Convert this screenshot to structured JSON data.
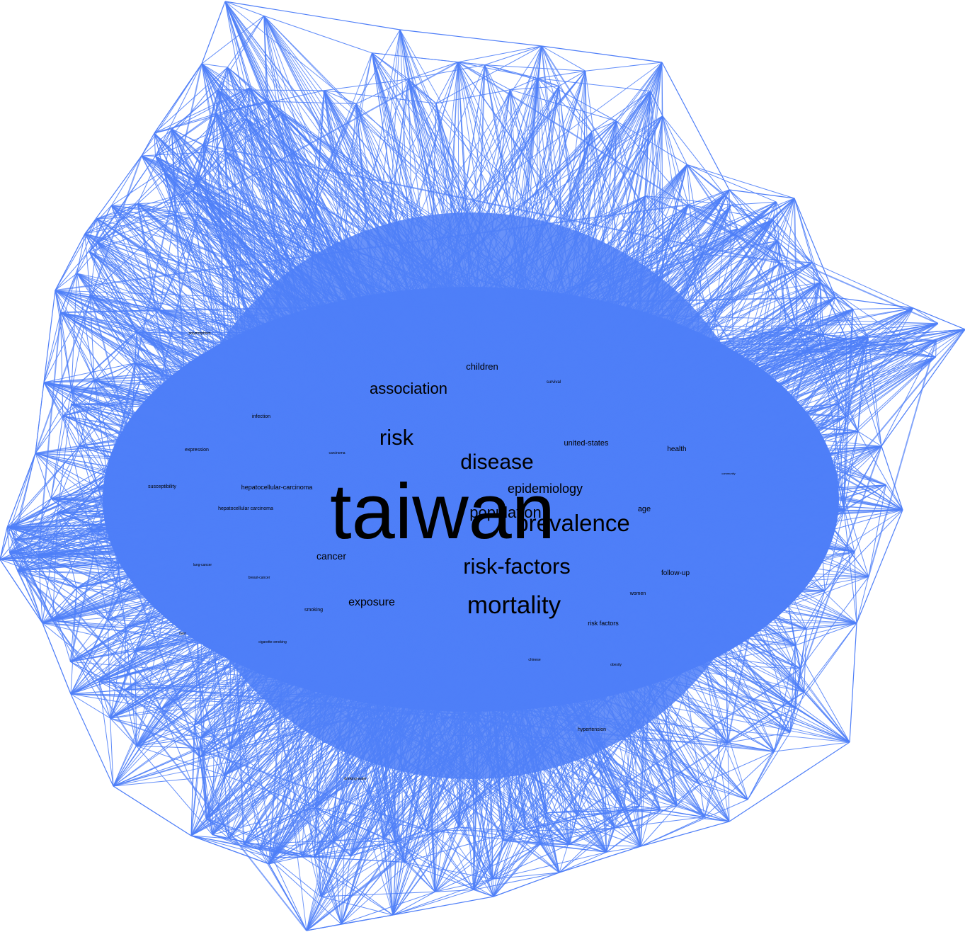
{
  "colors": {
    "edge": "#4f7ff8",
    "fill": "#4f7ff8",
    "label": "#000000",
    "background": "#ffffff"
  },
  "keywords": [
    {
      "id": "taiwan",
      "text": "taiwan"
    },
    {
      "id": "prevalence",
      "text": "prevalence"
    },
    {
      "id": "population",
      "text": "population"
    },
    {
      "id": "mortality",
      "text": "mortality"
    },
    {
      "id": "risk-factors",
      "text": "risk-factors"
    },
    {
      "id": "risk",
      "text": "risk"
    },
    {
      "id": "disease",
      "text": "disease"
    },
    {
      "id": "association",
      "text": "association"
    },
    {
      "id": "epidemiology",
      "text": "epidemiology"
    },
    {
      "id": "exposure",
      "text": "exposure"
    },
    {
      "id": "cancer",
      "text": "cancer"
    },
    {
      "id": "children",
      "text": "children"
    },
    {
      "id": "united-states",
      "text": "united-states"
    },
    {
      "id": "health",
      "text": "health"
    },
    {
      "id": "age",
      "text": "age"
    },
    {
      "id": "follow-up",
      "text": "follow-up"
    },
    {
      "id": "risk-factors-2",
      "text": "risk factors"
    },
    {
      "id": "women",
      "text": "women"
    },
    {
      "id": "hepatocellular-carcinoma",
      "text": "hepatocellular-carcinoma"
    },
    {
      "id": "hepatocellular-carcinoma-2",
      "text": "hepatocellular carcinoma"
    },
    {
      "id": "susceptibility",
      "text": "susceptibility"
    },
    {
      "id": "expression",
      "text": "expression"
    },
    {
      "id": "infection",
      "text": "infection"
    },
    {
      "id": "smoking",
      "text": "smoking"
    },
    {
      "id": "survival",
      "text": "survival"
    },
    {
      "id": "hypertension",
      "text": "hypertension"
    },
    {
      "id": "carcinoma",
      "text": "carcinoma"
    },
    {
      "id": "breast-cancer",
      "text": "breast-cancer"
    },
    {
      "id": "lung-cancer",
      "text": "lung-cancer"
    },
    {
      "id": "cigarette-smoking",
      "text": "cigarette-smoking"
    },
    {
      "id": "liver",
      "text": "liver"
    },
    {
      "id": "chinese",
      "text": "chinese"
    },
    {
      "id": "obesity",
      "text": "obesity"
    },
    {
      "id": "drinking-water",
      "text": "drinking-water"
    },
    {
      "id": "polymorphism",
      "text": "polymorphism"
    },
    {
      "id": "community",
      "text": "community"
    }
  ]
}
